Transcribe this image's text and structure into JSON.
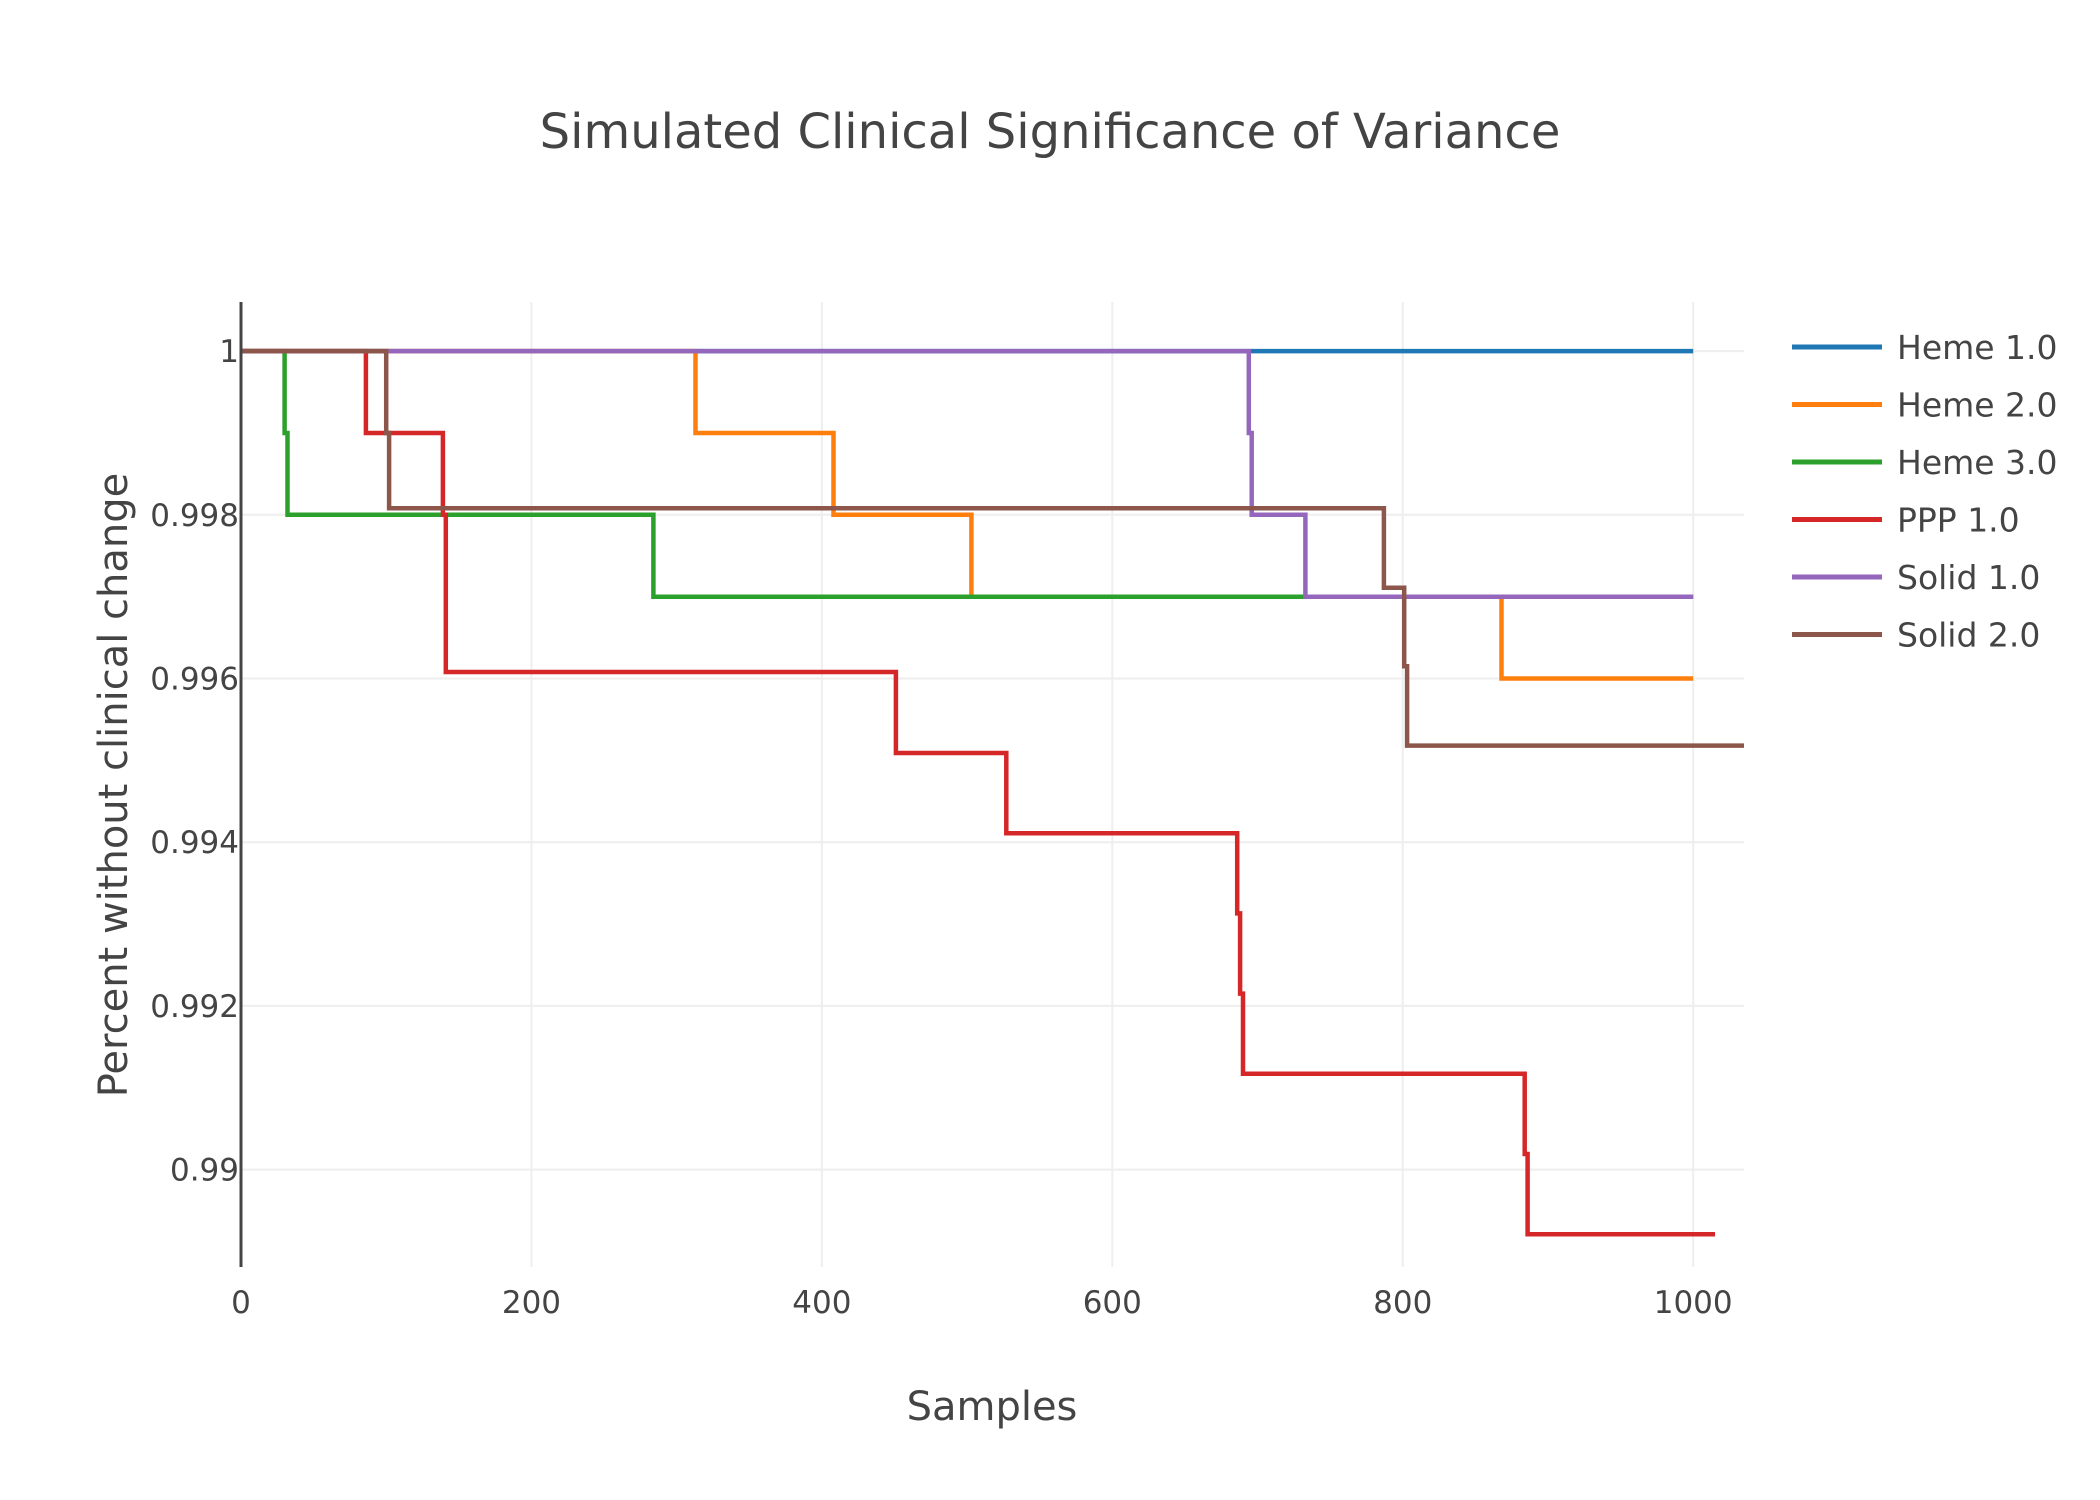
{
  "chart_data": {
    "type": "line",
    "title": "Simulated Clinical Significance of Variance",
    "xlabel": "Samples",
    "ylabel": "Percent without clinical change",
    "xlim": [
      0,
      1035
    ],
    "ylim": [
      0.98881,
      1.0006
    ],
    "x_ticks": [
      0,
      200,
      400,
      600,
      800,
      1000
    ],
    "x_tick_labels": [
      "0",
      "200",
      "400",
      "600",
      "800",
      "1000"
    ],
    "y_ticks": [
      0.99,
      0.992,
      0.994,
      0.996,
      0.998,
      1
    ],
    "y_tick_labels": [
      "0.99",
      "0.992",
      "0.994",
      "0.996",
      "0.998",
      "1"
    ],
    "grid": true,
    "legend_position": "top-right",
    "line_shape": "step",
    "series": [
      {
        "name": "Heme 1.0",
        "color": "#1f77b4",
        "x": [
          0,
          1000
        ],
        "y": [
          1,
          1
        ]
      },
      {
        "name": "Heme 2.0",
        "color": "#ff7f0e",
        "x": [
          0,
          313,
          408,
          503,
          868,
          1000
        ],
        "y": [
          1,
          0.999,
          0.998,
          0.997,
          0.996,
          0.996
        ]
      },
      {
        "name": "Heme 3.0",
        "color": "#2ca02c",
        "x": [
          0,
          30,
          32,
          284,
          1000
        ],
        "y": [
          1,
          0.999,
          0.998,
          0.997,
          0.997
        ]
      },
      {
        "name": "PPP 1.0",
        "color": "#d62728",
        "x": [
          0,
          86,
          139,
          141,
          451,
          527,
          686,
          688,
          690,
          692,
          884,
          886,
          1015
        ],
        "y": [
          1,
          0.999,
          0.998,
          0.99608,
          0.99509,
          0.99411,
          0.99313,
          0.99215,
          0.99117,
          0.99117,
          0.99019,
          0.98921,
          0.98921
        ]
      },
      {
        "name": "Solid 1.0",
        "color": "#9467bd",
        "x": [
          0,
          694,
          696,
          733,
          1000
        ],
        "y": [
          1,
          0.999,
          0.998,
          0.997,
          0.997
        ]
      },
      {
        "name": "Solid 2.0",
        "color": "#8c564b",
        "x": [
          0,
          100,
          102,
          787,
          801,
          803,
          805,
          1035
        ],
        "y": [
          1,
          0.999,
          0.99808,
          0.99711,
          0.99615,
          0.99518,
          0.99518,
          0.99518
        ]
      }
    ]
  }
}
